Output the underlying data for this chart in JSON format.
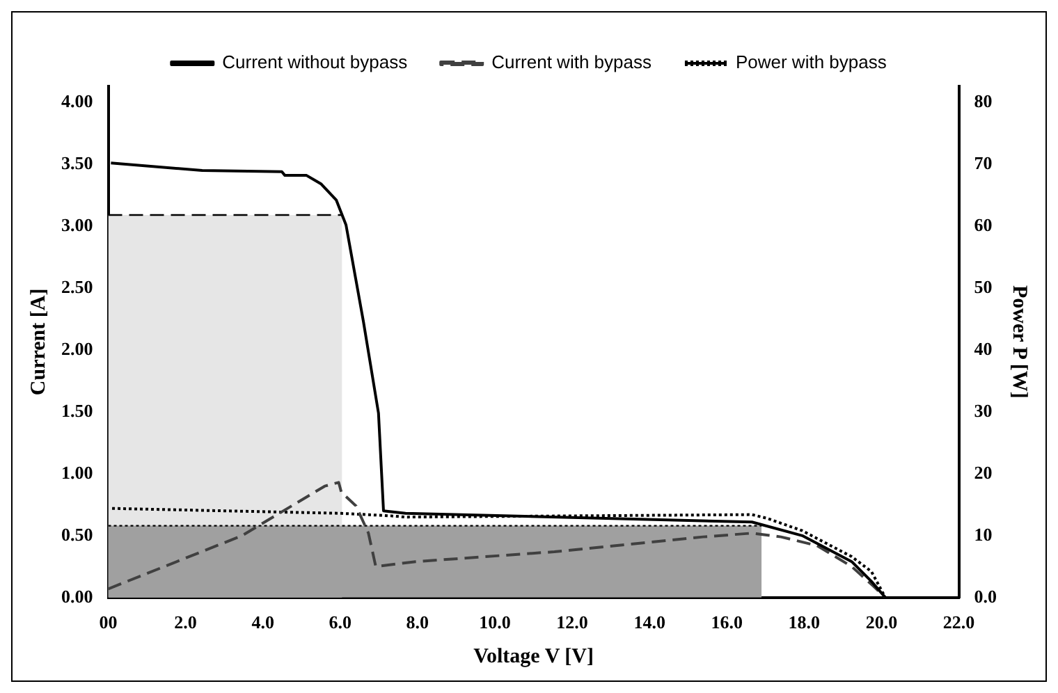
{
  "chart_data": {
    "type": "line",
    "xlabel": "Voltage V [V]",
    "ylabel": "Current [A]",
    "y2label": "Power P [W]",
    "xlim": [
      0,
      22
    ],
    "xticks": [
      {
        "value": 0,
        "label": "00"
      },
      {
        "value": 2,
        "label": "2.0"
      },
      {
        "value": 4,
        "label": "4.0"
      },
      {
        "value": 6,
        "label": "6.0"
      },
      {
        "value": 8,
        "label": "8.0"
      },
      {
        "value": 10,
        "label": "10.0"
      },
      {
        "value": 12,
        "label": "12.0"
      },
      {
        "value": 14,
        "label": "14.0"
      },
      {
        "value": 16,
        "label": "16.0"
      },
      {
        "value": 18,
        "label": "18.0"
      },
      {
        "value": 20,
        "label": "20.0"
      },
      {
        "value": 22,
        "label": "22.0"
      }
    ],
    "ylim": [
      0,
      4.13
    ],
    "yticks": [
      {
        "value": 0,
        "label": "0.00"
      },
      {
        "value": 0.5,
        "label": "0.50"
      },
      {
        "value": 1,
        "label": "1.00"
      },
      {
        "value": 1.5,
        "label": "1.50"
      },
      {
        "value": 2,
        "label": "2.00"
      },
      {
        "value": 2.5,
        "label": "2.50"
      },
      {
        "value": 3,
        "label": "3.00"
      },
      {
        "value": 3.5,
        "label": "3.50"
      },
      {
        "value": 4,
        "label": "4.00"
      }
    ],
    "y2lim": [
      0,
      82.6
    ],
    "y2ticks": [
      {
        "value": 0,
        "label": "0.0"
      },
      10,
      20,
      30,
      40,
      50,
      60,
      70,
      80
    ],
    "grid": false,
    "legend": "top",
    "marker": "none",
    "series": [
      {
        "type": "area",
        "color": "#e6e6e6",
        "line_style": "dashed",
        "x": [
          0,
          6.05
        ],
        "values": [
          3.09,
          3.09
        ]
      },
      {
        "type": "area",
        "color": "#a0a0a0",
        "line_style": "dotted",
        "x": [
          0,
          16.9
        ],
        "values": [
          0.58,
          0.58
        ]
      },
      {
        "name": "Current without bypass",
        "color": "#000000",
        "line_style": "solid",
        "x": [
          0.07,
          2.43,
          4.49,
          4.57,
          5.13,
          5.51,
          5.9,
          6.15,
          6.6,
          6.99,
          7.12,
          7.69,
          16.65,
          17.95,
          19.23,
          19.74,
          20.1
        ],
        "values": [
          3.51,
          3.45,
          3.44,
          3.41,
          3.41,
          3.34,
          3.21,
          3.01,
          2.23,
          1.49,
          0.7,
          0.68,
          0.61,
          0.5,
          0.29,
          0.13,
          0
        ]
      },
      {
        "name": "Current with bypass",
        "color": "#404040",
        "line_style": "dashed",
        "x": [
          0,
          3.46,
          5.6,
          5.96,
          6.03,
          6.41,
          6.73,
          6.92,
          7.95,
          11.54,
          15.38,
          16.65,
          17.4,
          18.33,
          19.23,
          19.8,
          20.1
        ],
        "values": [
          0.07,
          0.5,
          0.9,
          0.93,
          0.85,
          0.74,
          0.52,
          0.25,
          0.29,
          0.37,
          0.49,
          0.52,
          0.49,
          0.42,
          0.25,
          0.09,
          0
        ]
      },
      {
        "name": "Power with bypass",
        "color": "#000000",
        "line_style": "dotted",
        "x": [
          0.1,
          6.03,
          7.31,
          7.69,
          16.65,
          17.04,
          17.95,
          19.23,
          19.74,
          20.1
        ],
        "values": [
          0.72,
          0.68,
          0.66,
          0.65,
          0.67,
          0.64,
          0.54,
          0.33,
          0.21,
          0
        ]
      }
    ]
  }
}
